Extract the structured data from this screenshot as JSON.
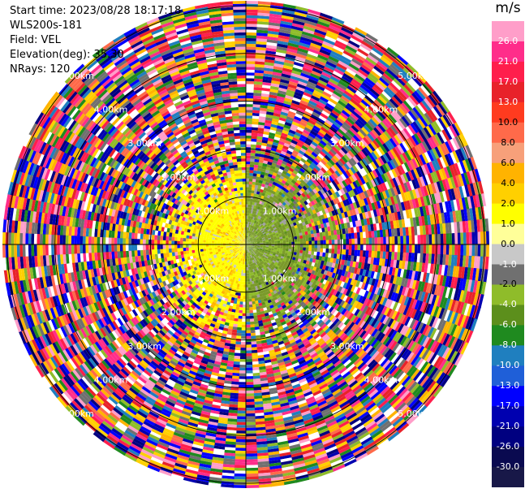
{
  "header": {
    "start_time": "Start time: 2023/08/28 18:17:18",
    "instrument": "WLS200s-181",
    "field": "Field: VEL",
    "elevation": "Elevation(deg): 35.30",
    "nrays": "NRays: 120"
  },
  "chart_data": {
    "type": "heatmap",
    "projection": "polar-ppi",
    "field": "VEL",
    "units": "m/s",
    "n_rays": 120,
    "elevation_deg": 35.3,
    "range_rings_km": [
      1.0,
      2.0,
      3.0,
      4.0,
      5.0
    ],
    "ring_labels": [
      "1.00km",
      "2.00km",
      "3.00km",
      "4.00km",
      "5.00km"
    ],
    "max_range_km": 5.1,
    "colorbar": {
      "title": "m/s",
      "ticks": [
        "26.0",
        "21.0",
        "17.0",
        "13.0",
        "10.0",
        "8.0",
        "6.0",
        "4.0",
        "2.0",
        "1.0",
        "0.0",
        "-1.0",
        "-2.0",
        "-4.0",
        "-6.0",
        "-8.0",
        "-10.0",
        "-13.0",
        "-17.0",
        "-21.0",
        "-26.0",
        "-30.0"
      ],
      "colors": [
        "#ff9ec9",
        "#ff2d8a",
        "#ff1e4c",
        "#e8222a",
        "#ff3b1f",
        "#ff6a4a",
        "#f7a07a",
        "#ffb300",
        "#ffd000",
        "#ffff00",
        "#ffff99",
        "#c8c8c8",
        "#707070",
        "#8fbc2a",
        "#5c8f1c",
        "#1f8a1f",
        "#1f7fbf",
        "#1f5fd8",
        "#0000ff",
        "#0000b0",
        "#000080",
        "#0a0a50",
        "#181848"
      ]
    },
    "near_field_pattern": {
      "approaching_sector_color": "#ffff00",
      "receding_sector_color": "#7a9a2a"
    },
    "clutter_palette": [
      "#ff2d8a",
      "#ff1e4c",
      "#ffd000",
      "#0000b0",
      "#000080",
      "#1f7fbf",
      "#ff6a4a",
      "#ff9ec9",
      "#1f8a1f",
      "#8fbc2a",
      "#ffb300",
      "#707070",
      "#ffffff",
      "#e8222a",
      "#0000ff"
    ]
  }
}
